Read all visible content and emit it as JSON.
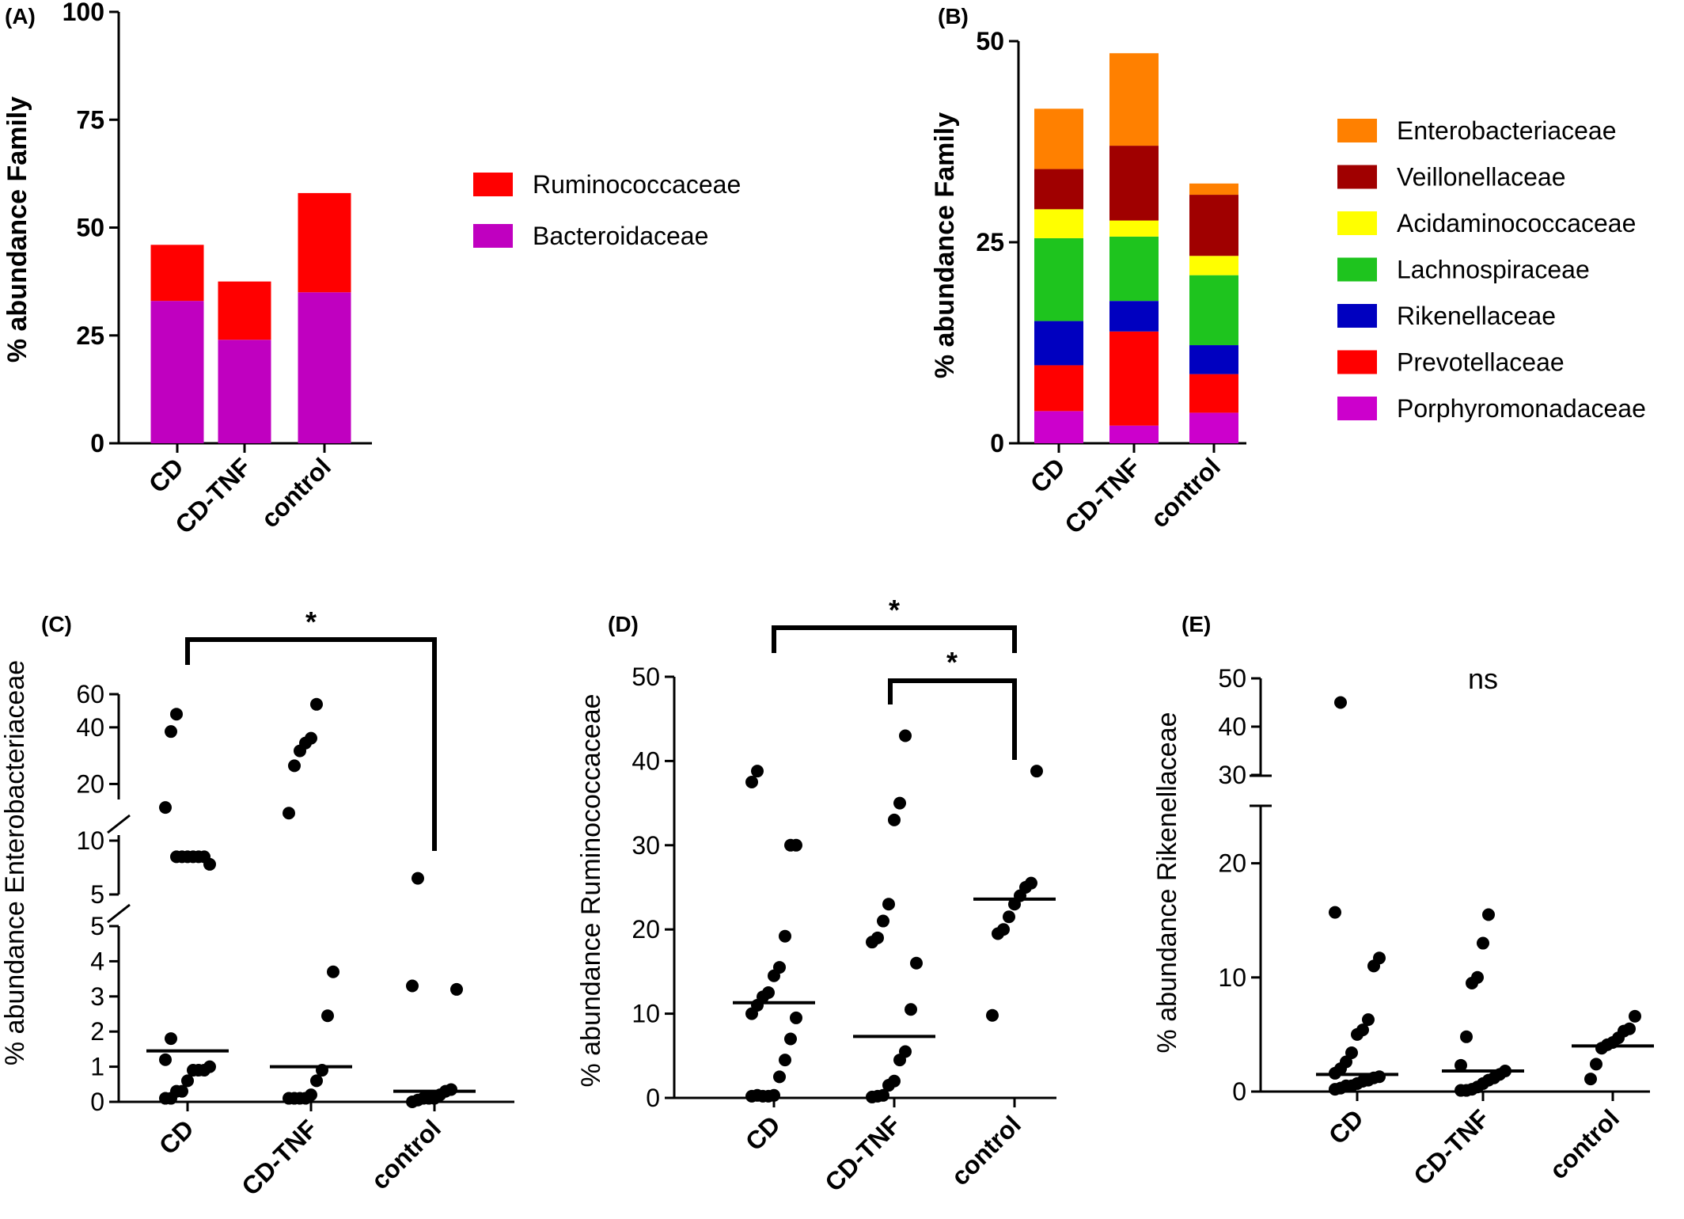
{
  "chart_data": [
    {
      "panel": "(A)",
      "type": "bar",
      "stacked": true,
      "categories": [
        "CD",
        "CD-TNF",
        "control"
      ],
      "ylabel": "% abundance Family",
      "ylim": [
        0,
        100
      ],
      "yticks": [
        "0",
        "25",
        "50",
        "75",
        "100"
      ],
      "series": [
        {
          "name": "Bacteroidaceae",
          "color": "#c000c0",
          "values": [
            33,
            24,
            35
          ]
        },
        {
          "name": "Ruminococcaceae",
          "color": "#ff0000",
          "values": [
            13,
            13.5,
            23
          ]
        }
      ],
      "legend_order": [
        "Ruminococcaceae",
        "Bacteroidaceae"
      ],
      "legend": "right"
    },
    {
      "panel": "(B)",
      "type": "bar",
      "stacked": true,
      "categories": [
        "CD",
        "CD-TNF",
        "control"
      ],
      "ylabel": "% abundance  Family",
      "ylim": [
        0,
        50
      ],
      "yticks": [
        "0",
        "25",
        "50"
      ],
      "series": [
        {
          "name": "Porphyromonadaceae",
          "color": "#cc00cc",
          "values": [
            4,
            2.2,
            3.8
          ]
        },
        {
          "name": "Prevotellaceae",
          "color": "#ff0000",
          "values": [
            5.7,
            11.7,
            4.8
          ]
        },
        {
          "name": "Rikenellaceae",
          "color": "#0000c0",
          "values": [
            5.5,
            3.8,
            3.6
          ]
        },
        {
          "name": "Lachnospiraceae",
          "color": "#1ec41e",
          "values": [
            10.3,
            8,
            8.7
          ]
        },
        {
          "name": "Acidaminococcaceae",
          "color": "#ffff00",
          "values": [
            3.6,
            2,
            2.4
          ]
        },
        {
          "name": "Veillonellaceae",
          "color": "#a00000",
          "values": [
            5,
            9.3,
            7.6
          ]
        },
        {
          "name": "Enterobacteriaceae",
          "color": "#ff8000",
          "values": [
            7.5,
            11.5,
            1.4
          ]
        }
      ],
      "legend_order": [
        "Enterobacteriaceae",
        "Veillonellaceae",
        "Acidaminococcaceae",
        "Lachnospiraceae",
        "Rikenellaceae",
        "Prevotellaceae",
        "Porphyromonadaceae"
      ],
      "legend": "right"
    },
    {
      "panel": "(C)",
      "type": "scatter",
      "categories": [
        "CD",
        "CD-TNF",
        "control"
      ],
      "ylabel": "% abundance Enterobacteriaceae",
      "broken_axis": true,
      "yticks": [
        "0",
        "1",
        "2",
        "3",
        "4",
        "5",
        "5",
        "10",
        "20",
        "40",
        "60"
      ],
      "significance": "*",
      "groups": [
        {
          "name": "CD",
          "median": 1.45,
          "values": [
            0.1,
            0.1,
            0.3,
            0.3,
            0.6,
            0.9,
            0.9,
            0.9,
            1.0,
            1.2,
            1.8,
            8.5,
            8.5,
            8.5,
            8.5,
            8.5,
            8.5,
            7.8,
            15,
            38,
            47
          ]
        },
        {
          "name": "CD-TNF",
          "median": 1.0,
          "values": [
            0.1,
            0.1,
            0.1,
            0.1,
            0.2,
            0.6,
            0.9,
            2.45,
            3.7,
            14,
            25,
            30,
            33,
            35,
            53
          ]
        },
        {
          "name": "control",
          "median": 0.3,
          "values": [
            0.0,
            0.05,
            0.1,
            0.1,
            0.1,
            0.2,
            0.3,
            0.35,
            3.2,
            3.3,
            6.5
          ]
        }
      ]
    },
    {
      "panel": "(D)",
      "type": "scatter",
      "categories": [
        "CD",
        "CD-TNF",
        "control"
      ],
      "ylabel": "% abundance Ruminococcaceae",
      "ylim": [
        0,
        50
      ],
      "yticks": [
        "0",
        "10",
        "20",
        "30",
        "40",
        "50"
      ],
      "significance": [
        "*",
        "*"
      ],
      "groups": [
        {
          "name": "CD",
          "median": 11.3,
          "values": [
            0.2,
            0.3,
            0.2,
            0.2,
            0.3,
            2.5,
            4.5,
            7.0,
            9.5,
            10.0,
            11.0,
            12.0,
            12.5,
            14.5,
            15.5,
            19.2,
            30,
            30,
            37.5,
            38.8
          ]
        },
        {
          "name": "CD-TNF",
          "median": 7.3,
          "values": [
            0.1,
            0.2,
            0.3,
            1.5,
            2.0,
            4.5,
            5.5,
            10.5,
            16.0,
            18.5,
            19.0,
            21.0,
            23.0,
            33.0,
            35.0,
            43.0
          ]
        },
        {
          "name": "control",
          "median": 23.6,
          "values": [
            9.8,
            19.5,
            20.0,
            21.5,
            23.0,
            24.0,
            25.0,
            25.5,
            38.8
          ]
        }
      ]
    },
    {
      "panel": "(E)",
      "type": "scatter",
      "categories": [
        "CD",
        "CD-TNF",
        "control"
      ],
      "ylabel": "% abundance Rikenellaceae",
      "broken_axis": true,
      "yticks": [
        "0",
        "10",
        "20",
        "30",
        "40",
        "50"
      ],
      "significance": "ns",
      "groups": [
        {
          "name": "CD",
          "median": 1.5,
          "values": [
            0.2,
            0.3,
            0.5,
            0.5,
            0.7,
            0.9,
            1.0,
            1.2,
            1.3,
            1.6,
            2.0,
            2.6,
            3.4,
            5.0,
            5.4,
            6.3,
            11.0,
            11.7,
            15.7,
            45
          ]
        },
        {
          "name": "CD-TNF",
          "median": 1.8,
          "values": [
            0.1,
            0.1,
            0.2,
            0.4,
            0.7,
            1.0,
            1.2,
            1.5,
            1.8,
            2.3,
            4.8,
            9.5,
            10.0,
            13.0,
            15.5
          ]
        },
        {
          "name": "control",
          "median": 4.0,
          "values": [
            1.1,
            2.4,
            3.8,
            4.1,
            4.3,
            4.7,
            5.3,
            5.5,
            6.6
          ]
        }
      ]
    }
  ]
}
